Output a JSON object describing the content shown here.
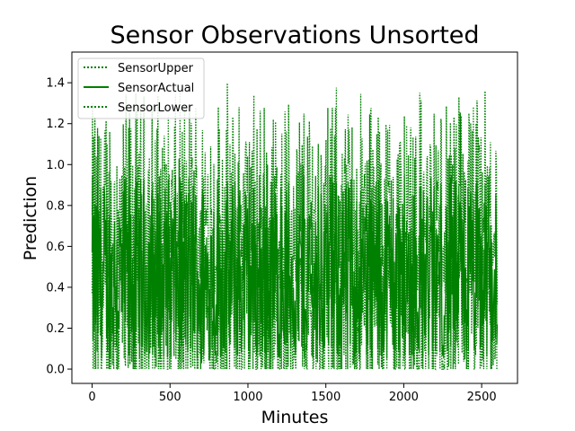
{
  "chart_data": {
    "type": "line",
    "title": "Sensor Observations Unsorted",
    "xlabel": "Minutes",
    "ylabel": "Prediction",
    "xlim": [
      -130,
      2730
    ],
    "ylim": [
      -0.07,
      1.55
    ],
    "xticks": [
      0,
      500,
      1000,
      1500,
      2000,
      2500
    ],
    "yticks": [
      0.0,
      0.2,
      0.4,
      0.6,
      0.8,
      1.0,
      1.2,
      1.4
    ],
    "grid": false,
    "legend_position": "top-left",
    "series_color": "#008000",
    "x_range": [
      0,
      2600
    ],
    "series": [
      {
        "name": "SensorUpper",
        "style": "dotted",
        "approx_range": [
          0.08,
          1.48
        ]
      },
      {
        "name": "SensorActual",
        "style": "solid",
        "approx_range": [
          0.05,
          1.0
        ]
      },
      {
        "name": "SensorLower",
        "style": "dotted",
        "approx_range": [
          0.0,
          0.75
        ]
      }
    ]
  }
}
